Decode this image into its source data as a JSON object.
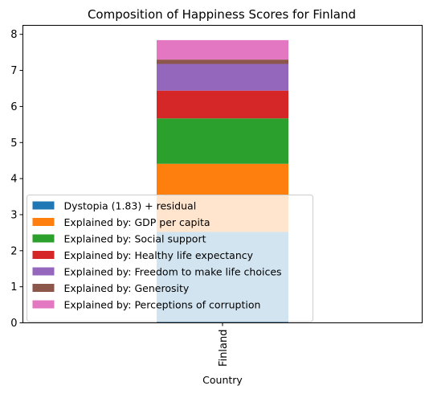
{
  "chart_data": {
    "type": "bar",
    "stacked": true,
    "title": "Composition of Happiness Scores for Finland",
    "xlabel": "Country",
    "ylabel": "",
    "categories": [
      "Finland"
    ],
    "ylim": [
      0,
      8.25
    ],
    "yticks": [
      "0",
      "1",
      "2",
      "3",
      "4",
      "5",
      "6",
      "7",
      "8"
    ],
    "grid": false,
    "legend_position": "lower-left",
    "series": [
      {
        "name": "Dystopia (1.83) + residual",
        "values": [
          2.52
        ],
        "color": "#1f77b4"
      },
      {
        "name": "Explained by: GDP per capita",
        "values": [
          1.89
        ],
        "color": "#ff7f0e"
      },
      {
        "name": "Explained by: Social support",
        "values": [
          1.26
        ],
        "color": "#2ca02c"
      },
      {
        "name": "Explained by: Healthy life expectancy",
        "values": [
          0.77
        ],
        "color": "#d62728"
      },
      {
        "name": "Explained by: Freedom to make life choices",
        "values": [
          0.74
        ],
        "color": "#9467bd"
      },
      {
        "name": "Explained by: Generosity",
        "values": [
          0.12
        ],
        "color": "#8c564b"
      },
      {
        "name": "Explained by: Perceptions of corruption",
        "values": [
          0.54
        ],
        "color": "#e377c2"
      }
    ]
  }
}
